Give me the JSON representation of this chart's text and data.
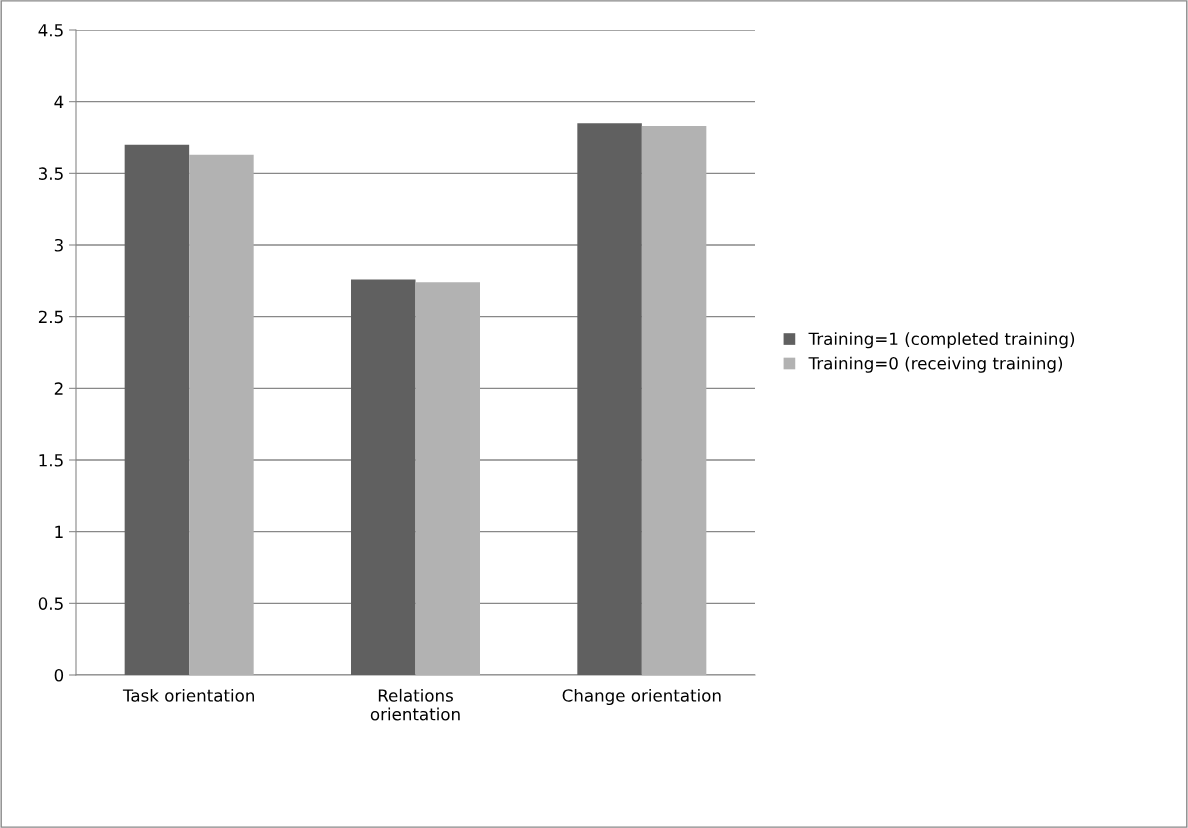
{
  "chart_data": {
    "type": "bar",
    "categories": [
      "Task orientation",
      "Relations\norientation",
      "Change orientation"
    ],
    "series": [
      {
        "name": "Training=1 (completed training)",
        "color": "#606060",
        "values": [
          3.7,
          2.76,
          3.85
        ]
      },
      {
        "name": "Training=0 (receiving training)",
        "color": "#b2b2b2",
        "values": [
          3.63,
          2.74,
          3.83
        ]
      }
    ],
    "ylim": [
      0,
      4.5
    ],
    "yticks": [
      0,
      0.5,
      1,
      1.5,
      2,
      2.5,
      3,
      3.5,
      4,
      4.5
    ],
    "grid": "y",
    "legend": "right"
  }
}
